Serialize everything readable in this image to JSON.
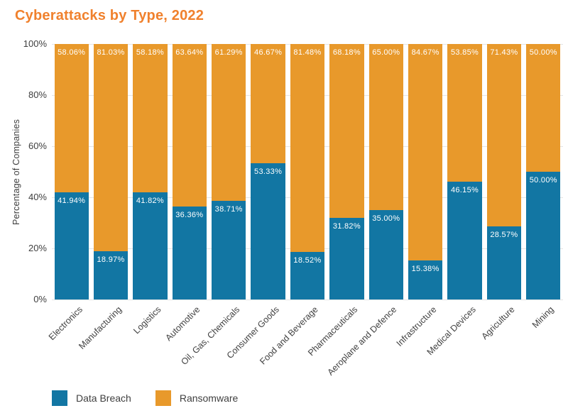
{
  "chart_data": {
    "type": "bar",
    "stacked": true,
    "title": "Cyberattacks by Type, 2022",
    "ylabel": "Percentage of Companies",
    "xlabel": "",
    "ylim": [
      0,
      100
    ],
    "y_ticks": [
      0,
      20,
      40,
      60,
      80,
      100
    ],
    "y_tick_suffix": "%",
    "grid": "horizontal",
    "legend_position": "bottom-left",
    "categories": [
      "Electronics",
      "Manufacturing",
      "Logistics",
      "Automotive",
      "Oil, Gas, Chemicals",
      "Consumer Goods",
      "Food and Beverage",
      "Pharmaceuticals",
      "Aeroplane and Defence",
      "Infrastructure",
      "Medical Devices",
      "Agriculture",
      "Mining"
    ],
    "series": [
      {
        "name": "Data Breach",
        "color": "#1276a3",
        "values": [
          41.94,
          18.97,
          41.82,
          36.36,
          38.71,
          53.33,
          18.52,
          31.82,
          35.0,
          15.38,
          46.15,
          28.57,
          50.0
        ],
        "labels": [
          "41.94%",
          "18.97%",
          "41.82%",
          "36.36%",
          "38.71%",
          "53.33%",
          "18.52%",
          "31.82%",
          "35.00%",
          "15.38%",
          "46.15%",
          "28.57%",
          "50.00%"
        ]
      },
      {
        "name": "Ransomware",
        "color": "#e8992b",
        "values": [
          58.06,
          81.03,
          58.18,
          63.64,
          61.29,
          46.67,
          81.48,
          68.18,
          65.0,
          84.67,
          53.85,
          71.43,
          50.0
        ],
        "labels": [
          "58.06%",
          "81.03%",
          "58.18%",
          "63.64%",
          "61.29%",
          "46.67%",
          "81.48%",
          "68.18%",
          "65.00%",
          "84.67%",
          "53.85%",
          "71.43%",
          "50.00%"
        ]
      }
    ]
  },
  "style": {
    "title_color": "#f0812d",
    "axis_text_color": "#3f3f3f",
    "grid_color": "#e4e4e4",
    "bar_label_color": "#ffffff",
    "background": "#ffffff"
  }
}
